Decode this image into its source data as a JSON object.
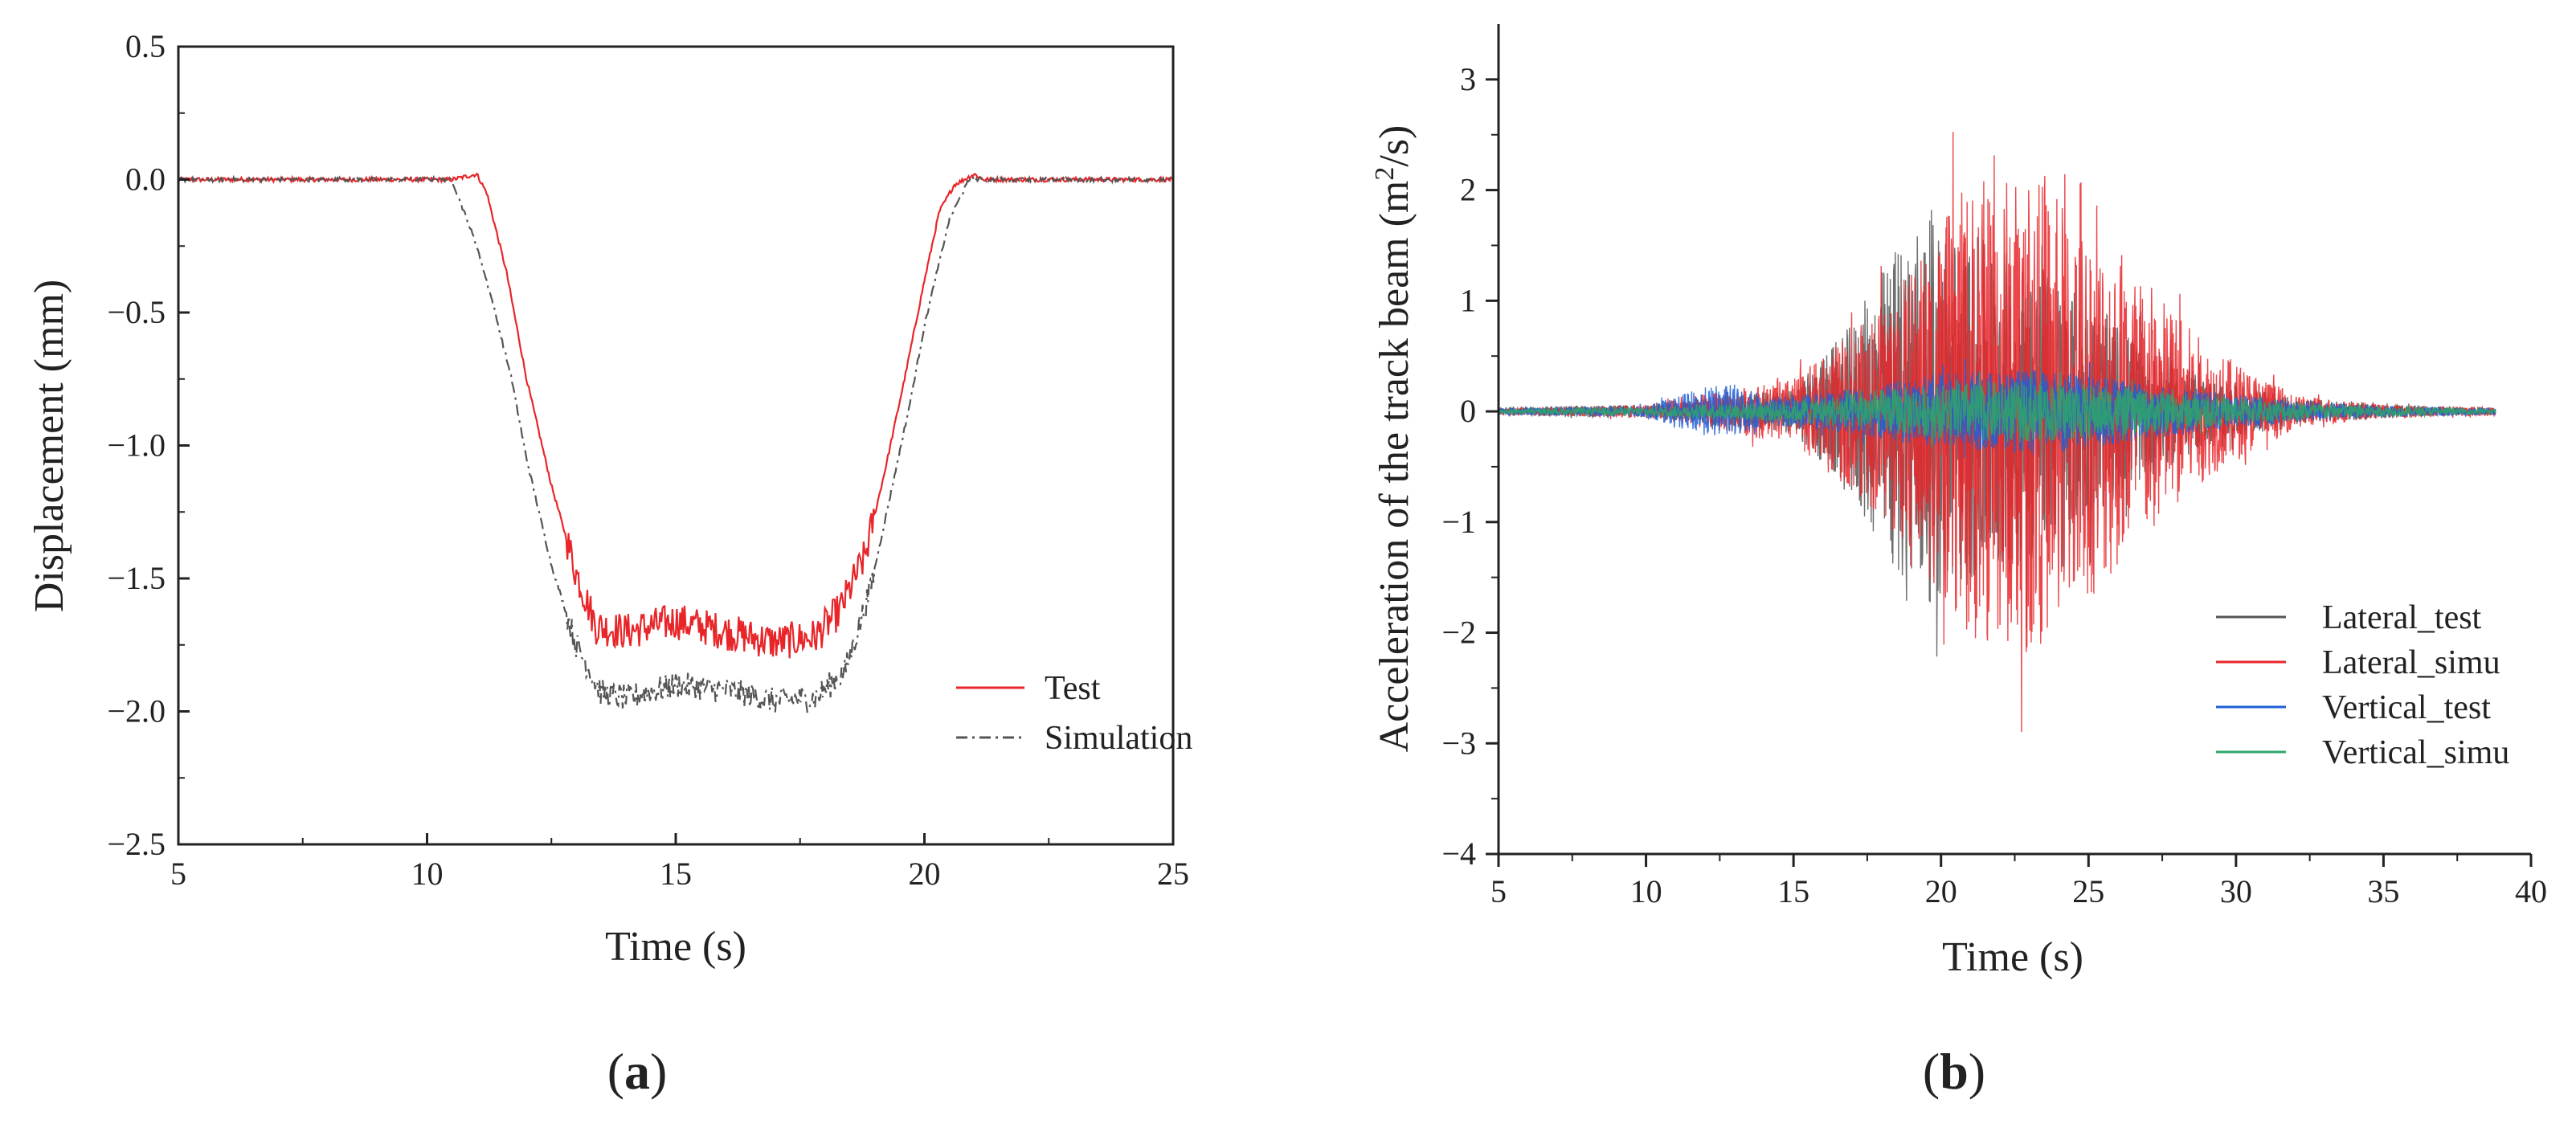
{
  "chart_data": [
    {
      "type": "line",
      "panel_label_open": "(",
      "panel_label_letter": "a",
      "panel_label_close": ")",
      "xlabel": "Time (s)",
      "ylabel": "Displacement (mm)",
      "xlim": [
        5,
        25
      ],
      "ylim": [
        -2.5,
        0.5
      ],
      "xticks": [
        5,
        10,
        15,
        20,
        25
      ],
      "yticks": [
        0.5,
        0.0,
        -0.5,
        -1.0,
        -1.5,
        -2.0,
        -2.5
      ],
      "ytick_labels": [
        "0.5",
        "0.0",
        "−0.5",
        "−1.0",
        "−1.5",
        "−2.0",
        "−2.5"
      ],
      "xtick_labels": [
        "5",
        "10",
        "15",
        "20",
        "25"
      ],
      "legend_position": "lower-right",
      "series": [
        {
          "name": "Test",
          "color": "#e8262a",
          "style": "solid",
          "x": [
            5.0,
            10.5,
            11.0,
            11.2,
            11.6,
            12.0,
            12.5,
            13.0,
            13.4,
            14.0,
            15.0,
            16.0,
            17.0,
            17.8,
            18.3,
            18.8,
            19.2,
            19.6,
            20.0,
            20.3,
            20.6,
            21.0,
            21.2,
            25.0
          ],
          "y": [
            0.0,
            0.0,
            0.02,
            -0.05,
            -0.35,
            -0.75,
            -1.15,
            -1.48,
            -1.68,
            -1.7,
            -1.66,
            -1.7,
            -1.74,
            -1.72,
            -1.62,
            -1.42,
            -1.1,
            -0.75,
            -0.38,
            -0.12,
            -0.02,
            0.02,
            0.0,
            0.0
          ],
          "noise": 0.07
        },
        {
          "name": "Simulation",
          "color": "#555555",
          "style": "dashdot",
          "x": [
            5.0,
            10.5,
            11.0,
            11.3,
            11.7,
            12.0,
            12.5,
            13.0,
            13.5,
            14.0,
            15.0,
            16.0,
            17.0,
            17.8,
            18.4,
            18.9,
            19.3,
            19.7,
            20.0,
            20.5,
            20.9,
            21.2,
            25.0
          ],
          "y": [
            0.0,
            0.0,
            -0.25,
            -0.45,
            -0.75,
            -1.05,
            -1.45,
            -1.75,
            -1.93,
            -1.95,
            -1.9,
            -1.92,
            -1.96,
            -1.95,
            -1.85,
            -1.55,
            -1.2,
            -0.85,
            -0.55,
            -0.15,
            0.0,
            0.0,
            0.0
          ],
          "noise": 0.05
        }
      ]
    },
    {
      "type": "line",
      "panel_label_open": "(",
      "panel_label_letter": "b",
      "panel_label_close": ")",
      "xlabel": "Time (s)",
      "ylabel_prefix": "Acceleration of the track beam (m",
      "ylabel_sup": "2",
      "ylabel_suffix": "/s)",
      "xlim": [
        5,
        40
      ],
      "ylim": [
        -4,
        3.5
      ],
      "xticks": [
        5,
        10,
        15,
        20,
        25,
        30,
        35,
        40
      ],
      "yticks": [
        -4,
        -3,
        -2,
        -1,
        0,
        1,
        2,
        3
      ],
      "ytick_labels": [
        "−4",
        "−3",
        "−2",
        "−1",
        "0",
        "1",
        "2",
        "3"
      ],
      "xtick_labels": [
        "5",
        "10",
        "15",
        "20",
        "25",
        "30",
        "35",
        "40"
      ],
      "legend_position": "lower-right",
      "series": [
        {
          "name": "Lateral_test",
          "color": "#555555",
          "envelope_t": [
            5,
            10,
            15,
            17,
            19,
            21,
            23,
            25,
            27,
            29,
            32,
            35,
            38.8
          ],
          "envelope_a": [
            0.04,
            0.06,
            0.2,
            0.8,
            1.8,
            1.6,
            1.4,
            1.0,
            0.6,
            0.3,
            0.12,
            0.06,
            0.03
          ]
        },
        {
          "name": "Lateral_simu",
          "color": "#e8262a",
          "envelope_t": [
            5,
            10,
            15,
            17,
            19,
            21,
            23,
            25,
            27,
            29,
            32,
            35,
            38.8
          ],
          "envelope_a": [
            0.03,
            0.06,
            0.3,
            0.7,
            1.3,
            2.1,
            2.2,
            1.7,
            1.2,
            0.6,
            0.15,
            0.06,
            0.04
          ]
        },
        {
          "name": "Vertical_test",
          "color": "#1f5fd6",
          "envelope_t": [
            5,
            10,
            12,
            13,
            14,
            17,
            20,
            23,
            26,
            29,
            32,
            35,
            38.8
          ],
          "envelope_a": [
            0.03,
            0.05,
            0.22,
            0.25,
            0.12,
            0.2,
            0.35,
            0.38,
            0.3,
            0.18,
            0.1,
            0.05,
            0.03
          ]
        },
        {
          "name": "Vertical_simu",
          "color": "#2ea66a",
          "envelope_t": [
            5,
            10,
            15,
            18,
            21,
            24,
            27,
            30,
            33,
            36,
            38.8
          ],
          "envelope_a": [
            0.02,
            0.04,
            0.1,
            0.2,
            0.27,
            0.27,
            0.2,
            0.12,
            0.07,
            0.04,
            0.02
          ]
        }
      ]
    }
  ]
}
